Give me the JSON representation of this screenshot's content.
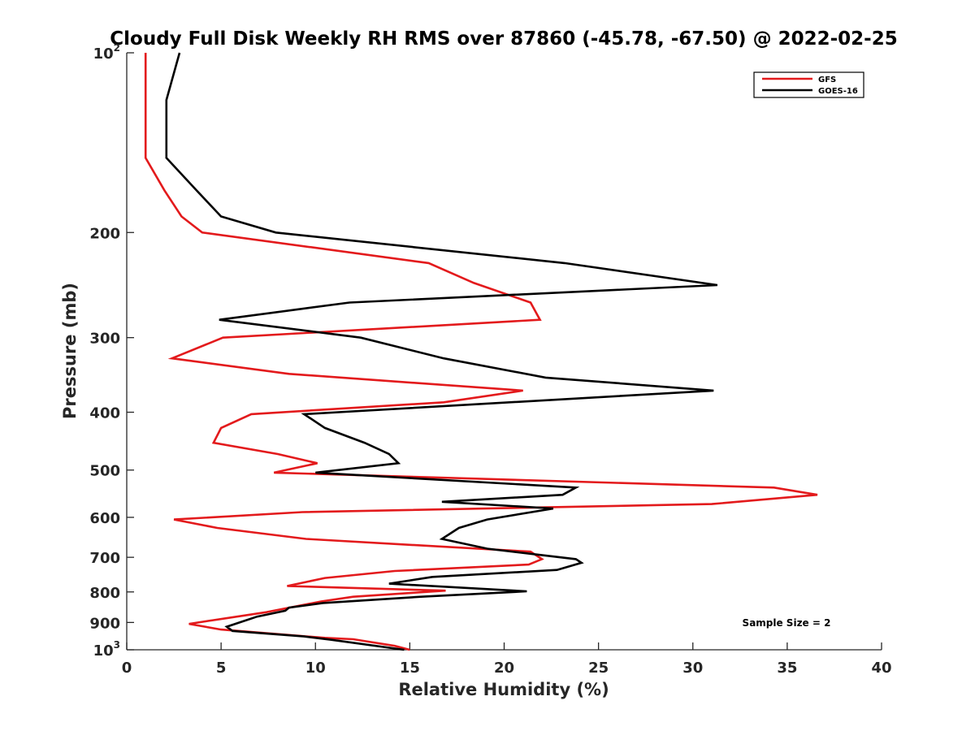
{
  "chart_data": {
    "type": "line",
    "title": "Cloudy Full Disk Weekly RH RMS over 87860 (-45.78, -67.50) @ 2022-02-25",
    "xlabel": "Relative Humidity (%)",
    "ylabel": "Pressure (mb)",
    "xlim": [
      0,
      40
    ],
    "ylim": [
      100,
      1000
    ],
    "y_scale": "log",
    "y_reversed": true,
    "grid": false,
    "legend_position": "top-right",
    "x_ticks": [
      "0",
      "5",
      "10",
      "15",
      "20",
      "25",
      "30",
      "35",
      "40"
    ],
    "x_tick_values": [
      0,
      5,
      10,
      15,
      20,
      25,
      30,
      35,
      40
    ],
    "y_ticks": [
      {
        "value": 100,
        "base": "10",
        "exp": "2"
      },
      {
        "value": 200,
        "base": "200",
        "exp": ""
      },
      {
        "value": 300,
        "base": "300",
        "exp": ""
      },
      {
        "value": 400,
        "base": "400",
        "exp": ""
      },
      {
        "value": 500,
        "base": "500",
        "exp": ""
      },
      {
        "value": 600,
        "base": "600",
        "exp": ""
      },
      {
        "value": 700,
        "base": "700",
        "exp": ""
      },
      {
        "value": 800,
        "base": "800",
        "exp": ""
      },
      {
        "value": 900,
        "base": "900",
        "exp": ""
      },
      {
        "value": 1000,
        "base": "10",
        "exp": "3"
      }
    ],
    "series": [
      {
        "name": "GFS",
        "color": "#e31a1c",
        "points": [
          [
            1.0,
            100
          ],
          [
            1.0,
            120
          ],
          [
            1.0,
            150
          ],
          [
            2.0,
            170
          ],
          [
            2.9,
            188
          ],
          [
            4.0,
            200
          ],
          [
            16.0,
            225
          ],
          [
            18.4,
            243
          ],
          [
            21.4,
            262
          ],
          [
            21.9,
            280
          ],
          [
            5.1,
            300
          ],
          [
            2.4,
            325
          ],
          [
            8.6,
            345
          ],
          [
            21.0,
            368
          ],
          [
            16.8,
            385
          ],
          [
            6.6,
            403
          ],
          [
            5.0,
            425
          ],
          [
            4.6,
            450
          ],
          [
            8.0,
            470
          ],
          [
            10.1,
            487
          ],
          [
            7.8,
            505
          ],
          [
            34.3,
            535
          ],
          [
            36.6,
            550
          ],
          [
            31.0,
            570
          ],
          [
            9.3,
            588
          ],
          [
            2.5,
            605
          ],
          [
            4.8,
            625
          ],
          [
            9.5,
            652
          ],
          [
            21.4,
            685
          ],
          [
            22.0,
            705
          ],
          [
            21.3,
            720
          ],
          [
            14.2,
            738
          ],
          [
            10.5,
            758
          ],
          [
            8.5,
            782
          ],
          [
            16.9,
            796
          ],
          [
            12.0,
            815
          ],
          [
            10.3,
            830
          ],
          [
            7.4,
            865
          ],
          [
            3.3,
            905
          ],
          [
            5.0,
            925
          ],
          [
            10.5,
            955
          ],
          [
            12.0,
            960
          ],
          [
            14.2,
            985
          ],
          [
            15.0,
            1000
          ]
        ]
      },
      {
        "name": "GOES-16",
        "color": "#000000",
        "points": [
          [
            2.8,
            100
          ],
          [
            2.1,
            120
          ],
          [
            2.1,
            150
          ],
          [
            3.7,
            170
          ],
          [
            5.0,
            188
          ],
          [
            7.9,
            200
          ],
          [
            23.2,
            225
          ],
          [
            31.3,
            245
          ],
          [
            11.8,
            262
          ],
          [
            4.9,
            280
          ],
          [
            12.4,
            300
          ],
          [
            16.8,
            325
          ],
          [
            22.2,
            350
          ],
          [
            31.1,
            368
          ],
          [
            9.4,
            403
          ],
          [
            10.5,
            425
          ],
          [
            12.6,
            450
          ],
          [
            13.9,
            470
          ],
          [
            14.4,
            487
          ],
          [
            10.0,
            505
          ],
          [
            23.8,
            535
          ],
          [
            23.1,
            550
          ],
          [
            16.7,
            565
          ],
          [
            22.6,
            580
          ],
          [
            19.1,
            605
          ],
          [
            17.6,
            625
          ],
          [
            16.7,
            652
          ],
          [
            19.1,
            677
          ],
          [
            23.8,
            705
          ],
          [
            24.1,
            715
          ],
          [
            22.8,
            735
          ],
          [
            16.2,
            755
          ],
          [
            13.9,
            775
          ],
          [
            21.2,
            798
          ],
          [
            15.6,
            815
          ],
          [
            10.4,
            835
          ],
          [
            8.6,
            850
          ],
          [
            8.4,
            860
          ],
          [
            6.9,
            880
          ],
          [
            5.3,
            915
          ],
          [
            5.6,
            930
          ],
          [
            9.4,
            950
          ],
          [
            10.8,
            962
          ],
          [
            14.7,
            1000
          ]
        ]
      }
    ],
    "legend": [
      "GFS",
      "GOES-16"
    ],
    "annotation": "Sample Size = 2"
  }
}
